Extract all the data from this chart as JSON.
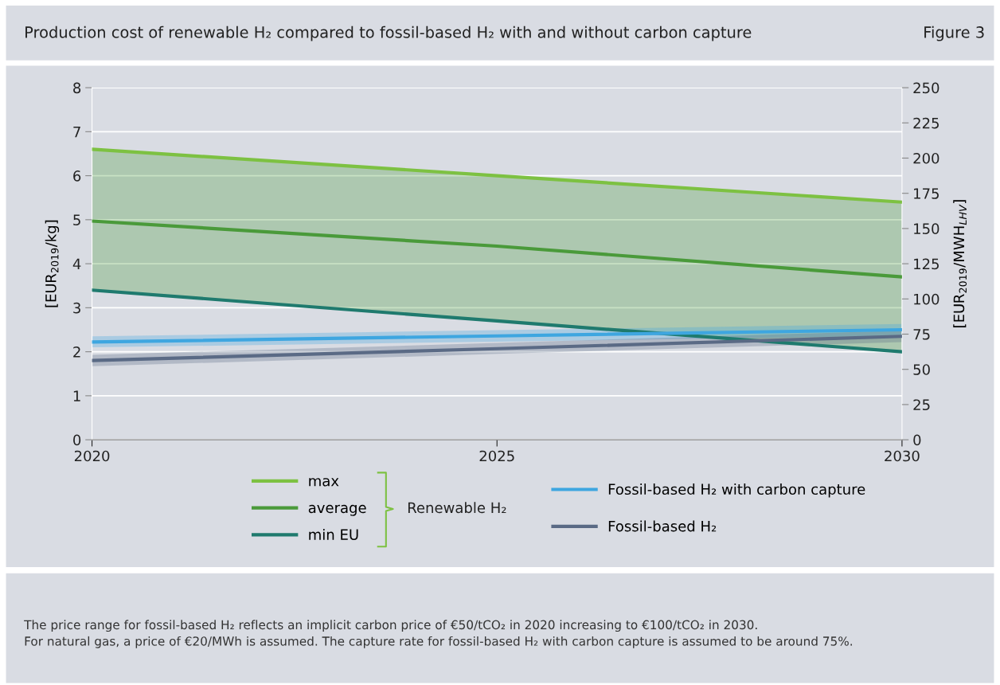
{
  "chart_data": {
    "type": "line",
    "title": "Production cost of renewable H₂ compared to fossil-based H₂ with and without carbon capture",
    "subtitle": "Figure 3",
    "ylabel": "[EUR$_{2019}$/kg]",
    "y2label": "[EUR$_{2019}$/MWH$_{LHV}$]",
    "legend_title": "Renewable H₂",
    "x": [
      2020,
      2025,
      2030
    ],
    "xlim": [
      2020,
      2030
    ],
    "xticks": [
      2020,
      2025,
      2030
    ],
    "ylim": [
      0,
      8
    ],
    "yticks": [
      0,
      1,
      2,
      3,
      4,
      5,
      6,
      7,
      8
    ],
    "y2lim": [
      0,
      250
    ],
    "y2ticks": [
      0,
      25,
      50,
      75,
      100,
      125,
      150,
      175,
      200,
      225,
      250
    ],
    "grid": "y",
    "legend": "bottom",
    "line_style": "solid",
    "marker": "none",
    "series": [
      {
        "name": "max",
        "color": "#7dc142",
        "values": [
          6.6,
          6.0,
          5.4
        ]
      },
      {
        "name": "average",
        "color": "#4a9a3a",
        "values": [
          4.97,
          4.4,
          3.7
        ],
        "lower": [
          3.4,
          2.7,
          2.0
        ],
        "upper": [
          6.6,
          6.0,
          5.4
        ]
      },
      {
        "name": "min EU",
        "color": "#1f7a6e",
        "values": [
          3.4,
          2.7,
          2.0
        ]
      },
      {
        "name": "Fossil-based H₂ with carbon capture",
        "color": "#3ea6e0",
        "values": [
          2.22,
          2.36,
          2.5
        ],
        "lower": [
          2.1,
          2.23,
          2.36
        ],
        "upper": [
          2.35,
          2.49,
          2.63
        ]
      },
      {
        "name": "Fossil-based H₂",
        "color": "#5a6a85",
        "values": [
          1.8,
          2.07,
          2.35
        ],
        "lower": [
          1.67,
          1.95,
          2.22
        ],
        "upper": [
          1.93,
          2.2,
          2.48
        ]
      }
    ],
    "annotations": [
      "The price range for fossil-based H₂ reflects an implicit carbon price of €50/tCO₂ in 2020 increasing to €100/tCO₂ in 2030.\nFor natural gas, a price of €20/MWh is assumed. The capture rate for fossil-based H₂ with carbon capture is assumed to be around 75%."
    ]
  }
}
